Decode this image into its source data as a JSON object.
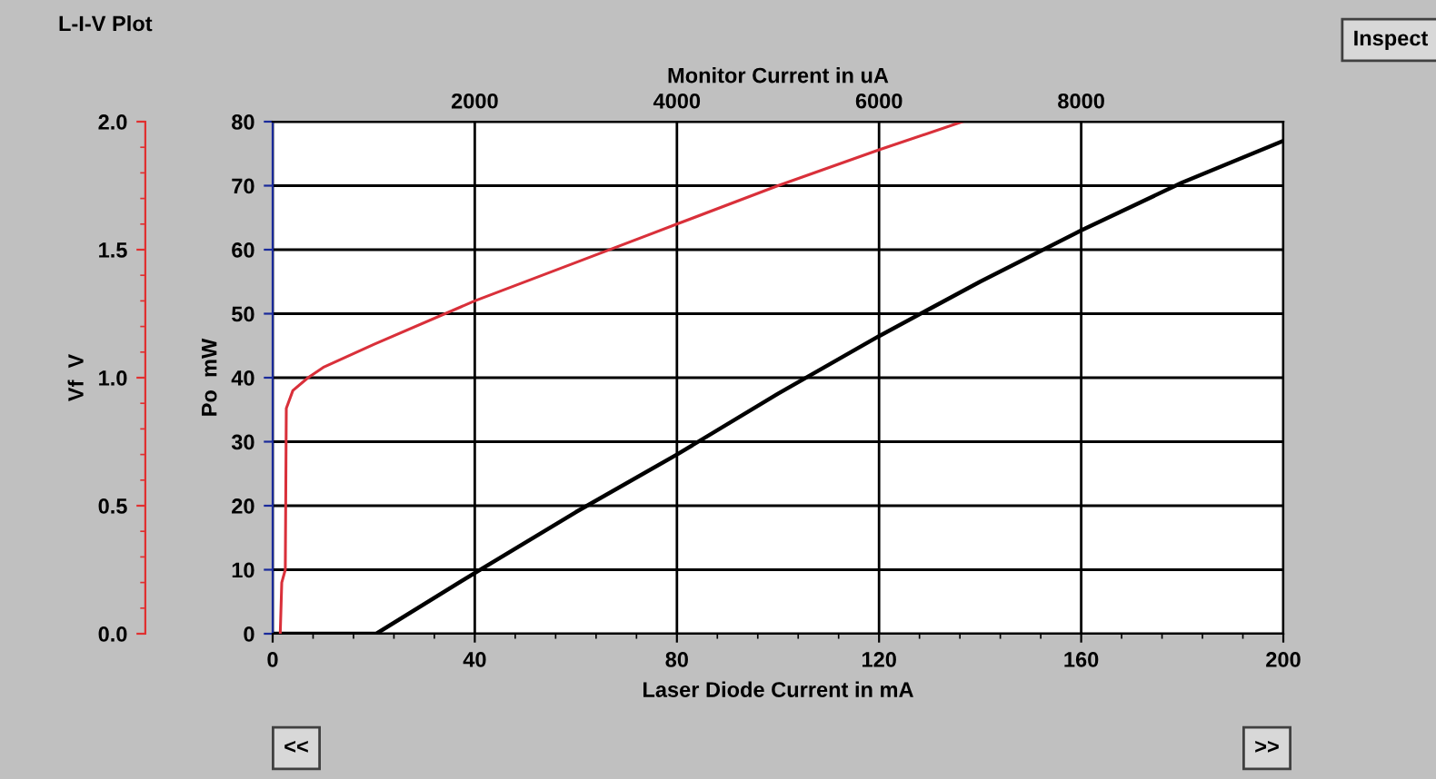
{
  "chart_data": {
    "type": "line",
    "title": "L-I-V Plot",
    "xlabel": "Laser Diode Current in mA",
    "ylabel": "Po  mW",
    "y2label": "Vf  V",
    "x2label": "Monitor Current in uA",
    "xlim": [
      0,
      200
    ],
    "xticks": [
      0,
      40,
      80,
      120,
      160,
      200
    ],
    "ylim": [
      0,
      80
    ],
    "yticks": [
      0,
      10,
      20,
      30,
      40,
      50,
      60,
      70,
      80
    ],
    "y2lim": [
      0,
      2.0
    ],
    "y2ticks": [
      {
        "value": 0,
        "label": "0.0"
      },
      0.5,
      {
        "value": 1,
        "label": "1.0"
      },
      1.5,
      {
        "value": 2,
        "label": "2.0"
      }
    ],
    "x2lim": [
      0,
      10000
    ],
    "x2ticks": [
      2000,
      4000,
      6000,
      8000
    ],
    "grid": true,
    "marker": "none",
    "line_style": "solid",
    "annotations": [
      "Inspect",
      "<<",
      ">>"
    ],
    "series": [
      {
        "color": "#000000",
        "x": [
          0,
          20.5,
          40,
          60,
          80,
          100,
          120,
          140,
          160,
          180,
          200
        ],
        "values": [
          0,
          0,
          9.5,
          19,
          28,
          37.5,
          46.5,
          55,
          63,
          70.5,
          77
        ]
      },
      {
        "color": "#d9303a",
        "axis": "y2",
        "x": [
          1.5,
          1.8,
          2.5,
          2.7,
          4,
          7,
          10,
          20,
          40,
          60,
          80,
          100,
          120,
          136.5
        ],
        "values": [
          0,
          0.2,
          0.25,
          0.88,
          0.95,
          1.0,
          1.04,
          1.13,
          1.3,
          1.45,
          1.6,
          1.75,
          1.89,
          2.0
        ]
      }
    ]
  }
}
